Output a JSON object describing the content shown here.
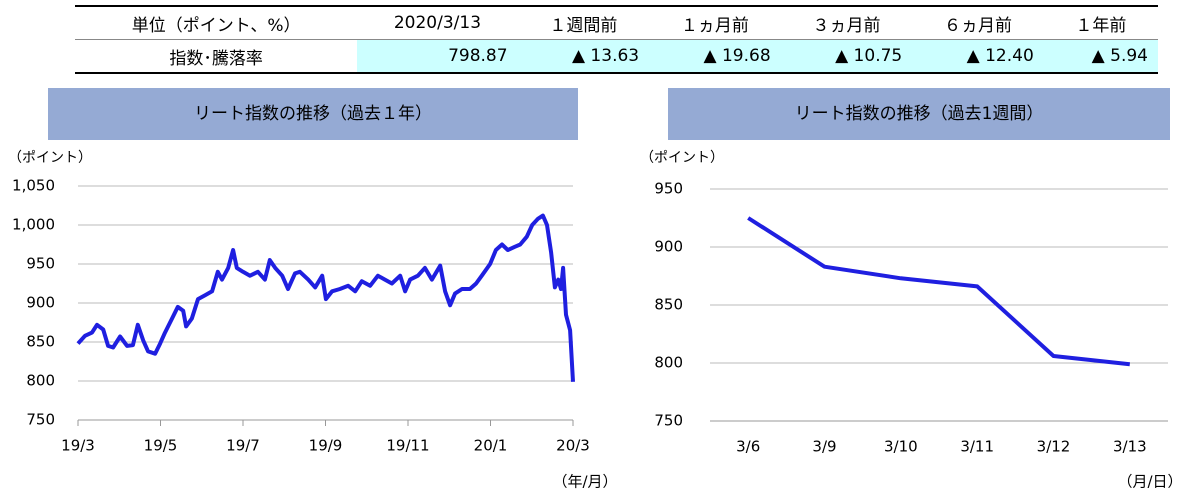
{
  "table": {
    "header": [
      "単位（ポイント、%）",
      "2020/3/13",
      "１週間前",
      "１ヵ月前",
      "３ヵ月前",
      "６ヵ月前",
      "１年前"
    ],
    "rows": [
      [
        "指数･騰落率",
        "798.87",
        "▲ 13.63",
        "▲ 19.68",
        "▲ 10.75",
        "▲ 12.40",
        "▲ 5.94"
      ]
    ]
  },
  "chart_data": [
    {
      "type": "line",
      "title": "リート指数の推移（過去１年）",
      "ylabel": "（ポイント）",
      "xlabel": "（年/月）",
      "ylim": [
        750,
        1050
      ],
      "yticks": [
        750,
        800,
        850,
        900,
        950,
        {
          "value": 1000,
          "label": "1,000"
        },
        {
          "value": 1050,
          "label": "1,050"
        }
      ],
      "xlim": [
        0,
        12
      ],
      "xticks": [
        {
          "value": 0,
          "label": "19/3"
        },
        {
          "value": 2,
          "label": "19/5"
        },
        {
          "value": 4,
          "label": "19/7"
        },
        {
          "value": 6,
          "label": "19/9"
        },
        {
          "value": 8,
          "label": "19/11"
        },
        {
          "value": 10,
          "label": "20/1"
        },
        {
          "value": 12,
          "label": "20/3"
        }
      ],
      "grid": true,
      "x": [
        0,
        0.17,
        0.34,
        0.46,
        0.61,
        0.73,
        0.85,
        1.02,
        1.19,
        1.33,
        1.45,
        1.58,
        1.7,
        1.87,
        1.99,
        2.11,
        2.28,
        2.42,
        2.55,
        2.62,
        2.76,
        2.91,
        3.08,
        3.25,
        3.39,
        3.49,
        3.64,
        3.76,
        3.85,
        4.0,
        4.17,
        4.36,
        4.53,
        4.65,
        4.78,
        4.95,
        5.09,
        5.26,
        5.38,
        5.58,
        5.75,
        5.92,
        6.01,
        6.16,
        6.35,
        6.55,
        6.72,
        6.88,
        7.08,
        7.27,
        7.44,
        7.61,
        7.81,
        7.93,
        8.05,
        8.24,
        8.41,
        8.58,
        8.78,
        8.9,
        9.02,
        9.14,
        9.31,
        9.5,
        9.65,
        9.79,
        9.99,
        10.13,
        10.28,
        10.42,
        10.59,
        10.72,
        10.88,
        11.01,
        11.15,
        11.27,
        11.37,
        11.47,
        11.56,
        11.64,
        11.71,
        11.76,
        11.83,
        11.93,
        12
      ],
      "series": [
        {
          "color": "#1f1fe0",
          "values": [
            848,
            858,
            862,
            872,
            866,
            845,
            843,
            857,
            845,
            846,
            872,
            852,
            838,
            835,
            848,
            862,
            880,
            895,
            890,
            870,
            880,
            905,
            910,
            915,
            940,
            930,
            945,
            968,
            945,
            940,
            935,
            940,
            930,
            955,
            945,
            935,
            918,
            938,
            940,
            930,
            920,
            935,
            905,
            915,
            918,
            922,
            915,
            928,
            922,
            935,
            930,
            925,
            935,
            915,
            930,
            935,
            945,
            930,
            948,
            915,
            897,
            912,
            918,
            918,
            925,
            935,
            950,
            968,
            975,
            968,
            972,
            975,
            985,
            1000,
            1008,
            1012,
            1000,
            965,
            920,
            930,
            918,
            945,
            885,
            865,
            799
          ]
        }
      ]
    },
    {
      "type": "line",
      "title": "リート指数の推移（過去1週間）",
      "ylabel": "（ポイント）",
      "xlabel": "（月/日）",
      "ylim": [
        750,
        950
      ],
      "yticks": [
        750,
        800,
        850,
        900,
        950
      ],
      "grid": true,
      "categories": [
        "3/6",
        "3/9",
        "3/10",
        "3/11",
        "3/12",
        "3/13"
      ],
      "series": [
        {
          "color": "#1f1fe0",
          "values": [
            925,
            883,
            873,
            866,
            806,
            799
          ]
        }
      ]
    }
  ]
}
